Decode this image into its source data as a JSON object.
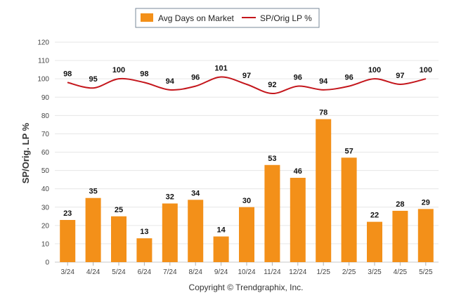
{
  "chart_data": {
    "type": "bar",
    "categories": [
      "3/24",
      "4/24",
      "5/24",
      "6/24",
      "7/24",
      "8/24",
      "9/24",
      "10/24",
      "11/24",
      "12/24",
      "1/25",
      "2/25",
      "3/25",
      "4/25",
      "5/25"
    ],
    "series": [
      {
        "name": "Avg Days on Market",
        "type": "bar",
        "color": "#f39019",
        "values": [
          23,
          35,
          25,
          13,
          32,
          34,
          14,
          30,
          53,
          46,
          78,
          57,
          22,
          28,
          29
        ]
      },
      {
        "name": "SP/Orig LP %",
        "type": "line",
        "color": "#c4161c",
        "values": [
          98,
          95,
          100,
          98,
          94,
          96,
          101,
          97,
          92,
          96,
          94,
          96,
          100,
          97,
          100
        ]
      }
    ],
    "ylabel": "SP/Orig. LP %",
    "ylim": [
      0,
      120
    ],
    "yticks": [
      0,
      10,
      20,
      30,
      40,
      50,
      60,
      70,
      80,
      90,
      100,
      110,
      120
    ],
    "grid": true,
    "legend_position": "top-center"
  },
  "footer": {
    "copyright": "Copyright © Trendgraphix, Inc."
  }
}
